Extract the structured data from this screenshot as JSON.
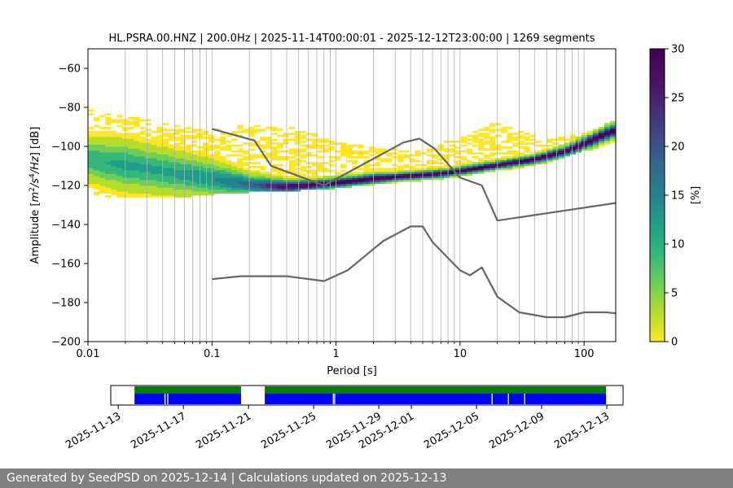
{
  "chart_data": [
    {
      "type": "heatmap",
      "title": "HL.PSRA.00.HNZ | 200.0Hz | 2025-11-14T00:00:01 - 2025-12-12T23:00:00 | 1269 segments",
      "xlabel": "Period [s]",
      "ylabel_main": "Amplitude [",
      "ylabel_math": [
        "m",
        "2",
        "/s",
        "4",
        "/Hz",
        "] [dB]"
      ],
      "x_scale": "log",
      "xlim": [
        0.01,
        180
      ],
      "ylim": [
        -200,
        -50
      ],
      "x_ticks": [
        {
          "value": 0.01,
          "label": "0.01"
        },
        {
          "value": 0.1,
          "label": "0.1"
        },
        {
          "value": 1,
          "label": "1"
        },
        {
          "value": 10,
          "label": "10"
        },
        {
          "value": 100,
          "label": "100"
        }
      ],
      "y_ticks": [
        {
          "value": -60,
          "label": "−60"
        },
        {
          "value": -80,
          "label": "−80"
        },
        {
          "value": -100,
          "label": "−100"
        },
        {
          "value": -120,
          "label": "−120"
        },
        {
          "value": -140,
          "label": "−140"
        },
        {
          "value": -160,
          "label": "−160"
        },
        {
          "value": -180,
          "label": "−180"
        },
        {
          "value": -200,
          "label": "−200"
        }
      ],
      "grid": "vertical lines at each log subdivision",
      "colormap": "viridis_r",
      "colorbar": {
        "label": "[%]",
        "range": [
          0,
          30
        ],
        "ticks": [
          {
            "value": 0,
            "label": "0"
          },
          {
            "value": 5,
            "label": "5"
          },
          {
            "value": 10,
            "label": "10"
          },
          {
            "value": 15,
            "label": "15"
          },
          {
            "value": 20,
            "label": "20"
          },
          {
            "value": 25,
            "label": "25"
          },
          {
            "value": 30,
            "label": "30"
          }
        ]
      },
      "density_ridge": {
        "period": [
          0.01,
          0.02,
          0.05,
          0.1,
          0.2,
          0.4,
          0.7,
          1,
          2,
          3,
          5,
          8,
          10,
          20,
          40,
          70,
          100,
          150,
          180
        ],
        "center_db": [
          -107,
          -110,
          -114,
          -117,
          -120,
          -121,
          -120,
          -119,
          -117,
          -116,
          -115,
          -114,
          -113,
          -110,
          -107,
          -103,
          -99,
          -94,
          -92
        ],
        "spread_db": [
          6,
          7,
          6,
          5,
          3,
          2,
          1.5,
          1.5,
          1.5,
          1.2,
          1.2,
          1.2,
          1.2,
          1.2,
          1.3,
          1.5,
          1.8,
          2,
          2
        ],
        "peak_pct": [
          10,
          11,
          11,
          13,
          18,
          28,
          30,
          30,
          30,
          30,
          30,
          30,
          30,
          30,
          30,
          30,
          30,
          30,
          30
        ]
      },
      "sparse_band": {
        "period": [
          0.01,
          0.02,
          0.05,
          0.1,
          0.2,
          0.5,
          1,
          2,
          5,
          10,
          20,
          50,
          100,
          180
        ],
        "upper_db": [
          -82,
          -86,
          -90,
          -93,
          -90,
          -92,
          -99,
          -102,
          -104,
          -96,
          -89,
          -98,
          -95,
          -88
        ],
        "lower_db": [
          -124,
          -126,
          -126,
          -124,
          -123,
          -122,
          -121,
          -119,
          -117,
          -115,
          -112,
          -108,
          -102,
          -97
        ]
      },
      "series": [
        {
          "x": [
            0.1,
            0.22,
            0.3,
            0.8,
            3.5,
            4.7,
            6.2,
            10,
            15,
            20,
            180
          ],
          "y": [
            -91,
            -97,
            -110,
            -120,
            -98,
            -96,
            -101,
            -116,
            -120,
            -138,
            -129
          ]
        },
        {
          "x": [
            0.1,
            0.17,
            0.4,
            0.8,
            1.24,
            2.4,
            4.0,
            5.0,
            6.0,
            10,
            12,
            15,
            20,
            30,
            50,
            70,
            100,
            150,
            180
          ],
          "y": [
            -168,
            -166.5,
            -166.5,
            -169,
            -163.5,
            -148.5,
            -141,
            -141,
            -149,
            -163.5,
            -166,
            -162,
            -177,
            -185,
            -187.5,
            -187.5,
            -185,
            -185,
            -185.5
          ]
        }
      ]
    },
    {
      "type": "timeline",
      "x_range": [
        "2025-11-12T13:00",
        "2025-12-14T00:00"
      ],
      "x_ticks": [
        "2025-11-13",
        "2025-11-17",
        "2025-11-21",
        "2025-11-25",
        "2025-11-29",
        "2025-12-01",
        "2025-12-05",
        "2025-12-09",
        "2025-12-13"
      ],
      "green_bars": [
        [
          "2025-11-14T00:00",
          "2025-11-20T13:00"
        ],
        [
          "2025-11-22T00:00",
          "2025-12-12T23:00"
        ]
      ],
      "blue_bars": [
        [
          "2025-11-14T00:00",
          "2025-11-20T13:00"
        ],
        [
          "2025-11-22T00:00",
          "2025-12-12T23:00"
        ]
      ],
      "gaps": [
        "2025-11-15T21:00",
        "2025-11-16T01:00",
        "2025-11-26T05:00",
        "2025-11-26T07:00",
        "2025-12-05T23:00",
        "2025-12-06T23:00",
        "2025-12-07T23:00"
      ]
    }
  ],
  "footer": {
    "text": "Generated by SeedPSD on 2025-12-14 | Calculations updated on 2025-12-13"
  }
}
